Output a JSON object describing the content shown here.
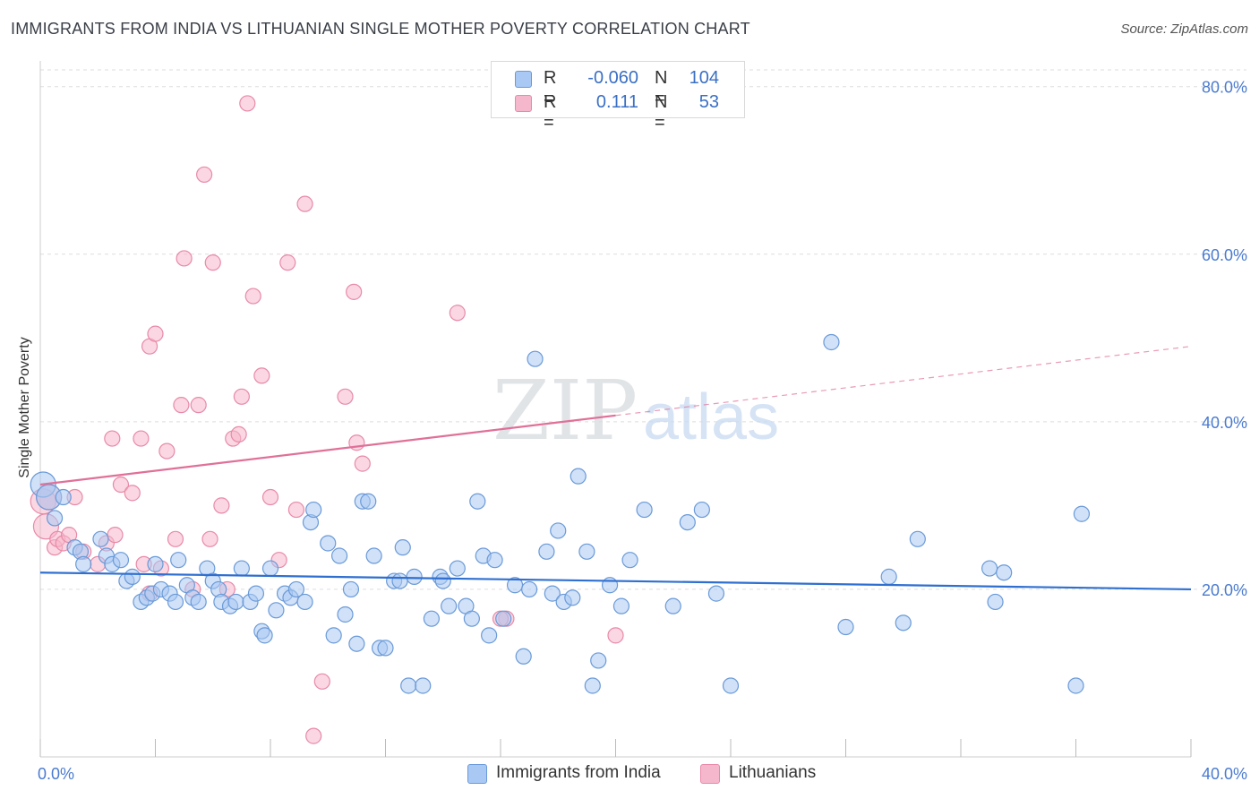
{
  "title": "IMMIGRANTS FROM INDIA VS LITHUANIAN SINGLE MOTHER POVERTY CORRELATION CHART",
  "source": "Source: ZipAtlas.com",
  "watermark": {
    "zip": "ZIP",
    "atlas": "atlas"
  },
  "legend": {
    "r_label": "R =",
    "n_label": "N =",
    "rows": [
      {
        "r": "-0.060",
        "n": "104",
        "color": "#a9c8f3"
      },
      {
        "r": "0.111",
        "n": "53",
        "color": "#f5b7cb"
      }
    ]
  },
  "bottom_legend": [
    {
      "label": "Immigrants from India",
      "color": "#a9c8f3"
    },
    {
      "label": "Lithuanians",
      "color": "#f5b7cb"
    }
  ],
  "colors": {
    "blue_fill": "#a9c8f3",
    "blue_stroke": "#6a9ad8",
    "blue_line": "#2f6fd0",
    "pink_fill": "#f5b7cb",
    "pink_stroke": "#e88aa8",
    "pink_line": "#e07098",
    "grid": "#dddddd",
    "tick_text": "#4a7bd0"
  },
  "chart_data": {
    "type": "scatter",
    "title": "IMMIGRANTS FROM INDIA VS LITHUANIAN SINGLE MOTHER POVERTY CORRELATION CHART",
    "xlabel": "",
    "ylabel": "Single Mother Poverty",
    "xlim": [
      0,
      40
    ],
    "ylim": [
      0,
      82
    ],
    "x_tick_labels": [
      "0.0%",
      "40.0%"
    ],
    "y_ticks": [
      20,
      40,
      60,
      80
    ],
    "y_tick_labels": [
      "20.0%",
      "40.0%",
      "60.0%",
      "80.0%"
    ],
    "grid": true,
    "series": [
      {
        "name": "Immigrants from India",
        "trend": {
          "x": [
            0,
            40
          ],
          "y": [
            22.0,
            20.0
          ],
          "solid_until": 40
        },
        "points": [
          [
            0.1,
            32.5
          ],
          [
            0.3,
            31.0
          ],
          [
            0.5,
            28.5
          ],
          [
            0.8,
            31.0
          ],
          [
            1.2,
            25.0
          ],
          [
            1.4,
            24.5
          ],
          [
            1.5,
            23.0
          ],
          [
            2.1,
            26.0
          ],
          [
            2.3,
            24.0
          ],
          [
            2.5,
            23.0
          ],
          [
            2.8,
            23.5
          ],
          [
            3.0,
            21.0
          ],
          [
            3.2,
            21.5
          ],
          [
            3.5,
            18.5
          ],
          [
            3.7,
            19.0
          ],
          [
            3.9,
            19.5
          ],
          [
            4.0,
            23.0
          ],
          [
            4.2,
            20.0
          ],
          [
            4.5,
            19.5
          ],
          [
            4.7,
            18.5
          ],
          [
            4.8,
            23.5
          ],
          [
            5.1,
            20.5
          ],
          [
            5.3,
            19.0
          ],
          [
            5.5,
            18.5
          ],
          [
            5.8,
            22.5
          ],
          [
            6.0,
            21.0
          ],
          [
            6.2,
            20.0
          ],
          [
            6.3,
            18.5
          ],
          [
            6.6,
            18.0
          ],
          [
            6.8,
            18.5
          ],
          [
            7.0,
            22.5
          ],
          [
            7.3,
            18.5
          ],
          [
            7.5,
            19.5
          ],
          [
            7.7,
            15.0
          ],
          [
            7.8,
            14.5
          ],
          [
            8.0,
            22.5
          ],
          [
            8.2,
            17.5
          ],
          [
            8.5,
            19.5
          ],
          [
            8.7,
            19.0
          ],
          [
            8.9,
            20.0
          ],
          [
            9.2,
            18.5
          ],
          [
            9.4,
            28.0
          ],
          [
            9.5,
            29.5
          ],
          [
            10.0,
            25.5
          ],
          [
            10.2,
            14.5
          ],
          [
            10.4,
            24.0
          ],
          [
            10.6,
            17.0
          ],
          [
            10.8,
            20.0
          ],
          [
            11.0,
            13.5
          ],
          [
            11.2,
            30.5
          ],
          [
            11.4,
            30.5
          ],
          [
            11.6,
            24.0
          ],
          [
            11.8,
            13.0
          ],
          [
            12.0,
            13.0
          ],
          [
            12.3,
            21.0
          ],
          [
            12.5,
            21.0
          ],
          [
            12.6,
            25.0
          ],
          [
            12.8,
            8.5
          ],
          [
            13.0,
            21.5
          ],
          [
            13.3,
            8.5
          ],
          [
            13.6,
            16.5
          ],
          [
            13.9,
            21.5
          ],
          [
            14.0,
            21.0
          ],
          [
            14.2,
            18.0
          ],
          [
            14.5,
            22.5
          ],
          [
            14.8,
            18.0
          ],
          [
            15.0,
            16.5
          ],
          [
            15.2,
            30.5
          ],
          [
            15.4,
            24.0
          ],
          [
            15.6,
            14.5
          ],
          [
            15.8,
            23.5
          ],
          [
            16.1,
            16.5
          ],
          [
            16.5,
            20.5
          ],
          [
            16.8,
            12.0
          ],
          [
            17.0,
            20.0
          ],
          [
            17.2,
            47.5
          ],
          [
            17.6,
            24.5
          ],
          [
            17.8,
            19.5
          ],
          [
            18.0,
            27.0
          ],
          [
            18.2,
            18.5
          ],
          [
            18.5,
            19.0
          ],
          [
            18.7,
            33.5
          ],
          [
            19.0,
            24.5
          ],
          [
            19.2,
            8.5
          ],
          [
            19.4,
            11.5
          ],
          [
            19.8,
            20.5
          ],
          [
            20.2,
            18.0
          ],
          [
            20.5,
            23.5
          ],
          [
            21.0,
            29.5
          ],
          [
            22.0,
            18.0
          ],
          [
            22.5,
            28.0
          ],
          [
            23.0,
            29.5
          ],
          [
            23.5,
            19.5
          ],
          [
            24.0,
            8.5
          ],
          [
            27.5,
            49.5
          ],
          [
            28.0,
            15.5
          ],
          [
            29.5,
            21.5
          ],
          [
            30.0,
            16.0
          ],
          [
            30.5,
            26.0
          ],
          [
            33.0,
            22.5
          ],
          [
            33.2,
            18.5
          ],
          [
            33.5,
            22.0
          ],
          [
            36.0,
            8.5
          ],
          [
            36.2,
            29.0
          ]
        ]
      },
      {
        "name": "Lithuanians",
        "trend": {
          "x": [
            0,
            40
          ],
          "y": [
            32.5,
            49.0
          ],
          "solid_until": 20
        },
        "points": [
          [
            0.1,
            30.5
          ],
          [
            0.2,
            27.5
          ],
          [
            0.3,
            31.0
          ],
          [
            0.5,
            25.0
          ],
          [
            0.6,
            26.0
          ],
          [
            0.8,
            25.5
          ],
          [
            1.0,
            26.5
          ],
          [
            1.2,
            31.0
          ],
          [
            1.5,
            24.5
          ],
          [
            2.0,
            23.0
          ],
          [
            2.3,
            25.5
          ],
          [
            2.5,
            38.0
          ],
          [
            2.6,
            26.5
          ],
          [
            2.8,
            32.5
          ],
          [
            3.2,
            31.5
          ],
          [
            3.5,
            38.0
          ],
          [
            3.6,
            23.0
          ],
          [
            3.8,
            49.0
          ],
          [
            4.0,
            50.5
          ],
          [
            4.2,
            22.5
          ],
          [
            4.4,
            36.5
          ],
          [
            4.7,
            26.0
          ],
          [
            4.9,
            42.0
          ],
          [
            5.0,
            59.5
          ],
          [
            5.3,
            20.0
          ],
          [
            5.5,
            42.0
          ],
          [
            5.7,
            69.5
          ],
          [
            5.9,
            26.0
          ],
          [
            6.0,
            59.0
          ],
          [
            6.3,
            30.0
          ],
          [
            6.5,
            20.0
          ],
          [
            6.7,
            38.0
          ],
          [
            6.9,
            38.5
          ],
          [
            7.0,
            43.0
          ],
          [
            7.2,
            78.0
          ],
          [
            7.4,
            55.0
          ],
          [
            7.7,
            45.5
          ],
          [
            8.0,
            31.0
          ],
          [
            8.3,
            23.5
          ],
          [
            8.6,
            59.0
          ],
          [
            8.9,
            29.5
          ],
          [
            9.2,
            66.0
          ],
          [
            9.5,
            2.5
          ],
          [
            9.8,
            9.0
          ],
          [
            10.6,
            43.0
          ],
          [
            10.9,
            55.5
          ],
          [
            11.0,
            37.5
          ],
          [
            11.2,
            35.0
          ],
          [
            14.5,
            53.0
          ],
          [
            16.2,
            16.5
          ],
          [
            20.0,
            14.5
          ],
          [
            16.0,
            16.5
          ],
          [
            3.8,
            19.5
          ]
        ]
      }
    ]
  }
}
